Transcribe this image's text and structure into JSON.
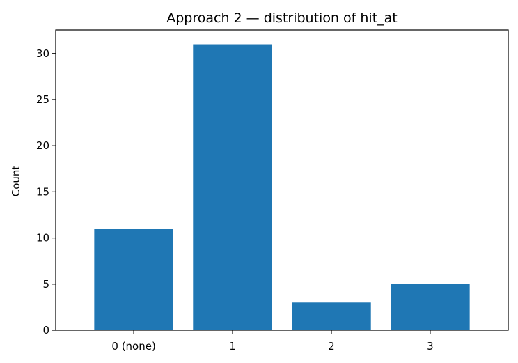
{
  "chart_data": {
    "type": "bar",
    "title": "Approach 2 — distribution of hit_at",
    "xlabel": "",
    "ylabel": "Count",
    "categories": [
      "0 (none)",
      "1",
      "2",
      "3"
    ],
    "values": [
      11,
      31,
      3,
      5
    ],
    "ylim": [
      0,
      32.55
    ],
    "yticks": [
      0,
      5,
      10,
      15,
      20,
      25,
      30
    ],
    "bar_color": "#1f77b4",
    "grid": false,
    "legend": "none"
  }
}
